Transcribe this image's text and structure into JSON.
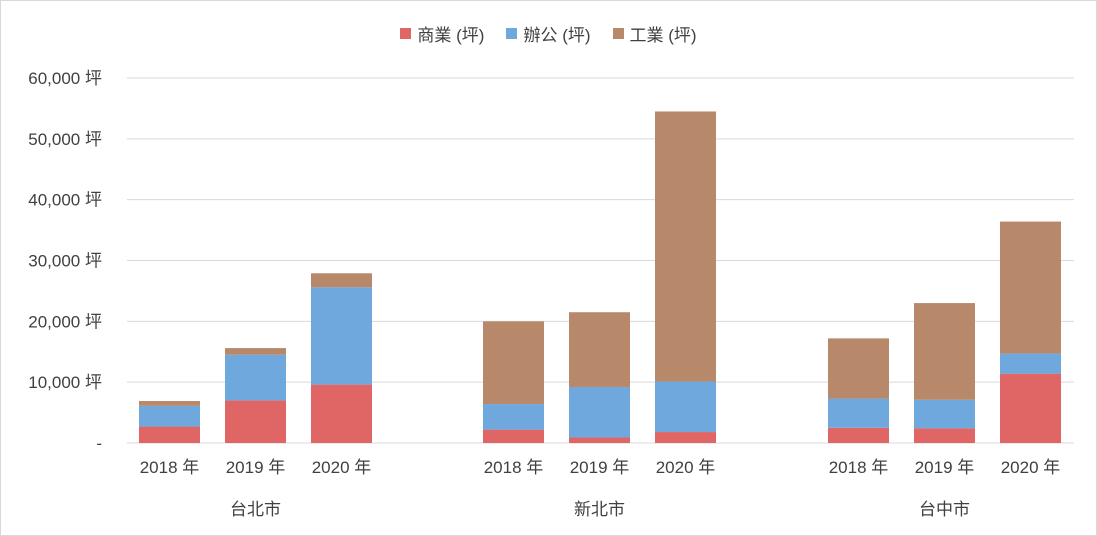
{
  "chart_data": {
    "type": "bar",
    "stacked": true,
    "y_unit_suffix": " 坪",
    "ylim": [
      0,
      60000
    ],
    "yticks": [
      "-",
      "10,000 坪",
      "20,000 坪",
      "30,000 坪",
      "40,000 坪",
      "50,000 坪",
      "60,000 坪"
    ],
    "grid": true,
    "legend_position": "top",
    "groups": [
      "台北市",
      "新北市",
      "台中市"
    ],
    "categories": [
      "2018 年",
      "2019 年",
      "2020 年"
    ],
    "series": [
      {
        "name": "商業 (坪)",
        "color": "#e06666",
        "values": [
          [
            2700,
            7000,
            9600
          ],
          [
            2200,
            900,
            1800
          ],
          [
            2500,
            2400,
            11400
          ]
        ]
      },
      {
        "name": "辦公 (坪)",
        "color": "#6fa8dc",
        "values": [
          [
            3400,
            7500,
            16000
          ],
          [
            4200,
            8300,
            8300
          ],
          [
            4800,
            4700,
            3300
          ]
        ]
      },
      {
        "name": "工業 (坪)",
        "color": "#b7896a",
        "values": [
          [
            800,
            1100,
            2300
          ],
          [
            13600,
            12300,
            44400
          ],
          [
            9900,
            15900,
            21700
          ]
        ]
      }
    ]
  }
}
